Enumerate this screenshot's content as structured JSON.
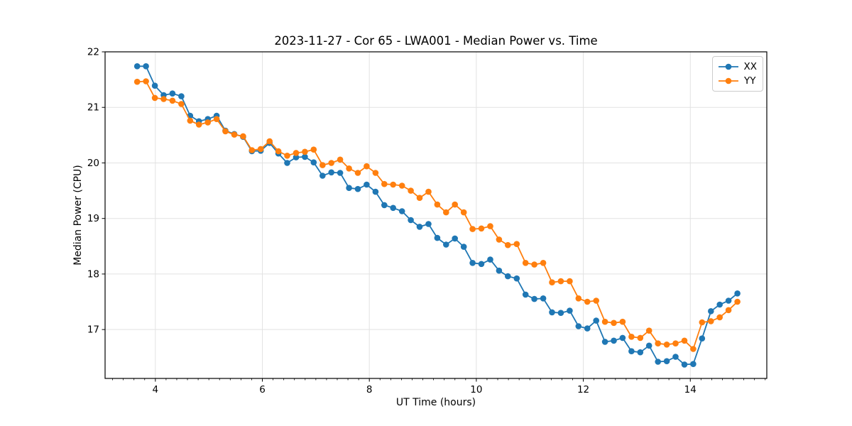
{
  "figure": {
    "background": "#ffffff",
    "text_color": "#000000",
    "spine_color": "#000000"
  },
  "legend": {
    "position": "upper right",
    "entries": [
      {
        "label": "XX",
        "color": "#1f77b4"
      },
      {
        "label": "YY",
        "color": "#ff7f0e"
      }
    ]
  },
  "chart_data": {
    "type": "line",
    "title": "2023-11-27 - Cor 65 - LWA001 - Median Power vs. Time",
    "xlabel": "UT Time (hours)",
    "ylabel": "Median Power (CPU)",
    "xlim": [
      3.06,
      15.43
    ],
    "ylim": [
      16.12,
      22.0
    ],
    "xticks": [
      4,
      6,
      8,
      10,
      12,
      14
    ],
    "yticks": [
      17,
      18,
      19,
      20,
      21,
      22
    ],
    "x_minor_tick_step": 0.2,
    "grid": true,
    "grid_color": "#e2e2e2",
    "marker": "circle",
    "legend_position": "upper right",
    "x": [
      3.66,
      3.825,
      3.99,
      4.155,
      4.32,
      4.485,
      4.65,
      4.815,
      4.98,
      5.145,
      5.31,
      5.475,
      5.64,
      5.805,
      5.97,
      6.135,
      6.3,
      6.465,
      6.63,
      6.795,
      6.96,
      7.125,
      7.29,
      7.455,
      7.62,
      7.785,
      7.95,
      8.115,
      8.28,
      8.445,
      8.61,
      8.775,
      8.94,
      9.105,
      9.27,
      9.435,
      9.6,
      9.765,
      9.93,
      10.095,
      10.26,
      10.425,
      10.59,
      10.755,
      10.92,
      11.085,
      11.25,
      11.415,
      11.58,
      11.745,
      11.91,
      12.075,
      12.24,
      12.405,
      12.57,
      12.735,
      12.9,
      13.065,
      13.23,
      13.395,
      13.56,
      13.725,
      13.89,
      14.055,
      14.22,
      14.385,
      14.55,
      14.715,
      14.88
    ],
    "series": [
      {
        "name": "XX",
        "color": "#1f77b4",
        "values": [
          21.74,
          21.74,
          21.39,
          21.22,
          21.25,
          21.2,
          20.85,
          20.75,
          20.79,
          20.85,
          20.58,
          20.52,
          20.47,
          20.21,
          20.22,
          20.36,
          20.17,
          20.0,
          20.1,
          20.11,
          20.01,
          19.77,
          19.83,
          19.82,
          19.55,
          19.53,
          19.61,
          19.48,
          19.24,
          19.19,
          19.13,
          18.97,
          18.85,
          18.9,
          18.65,
          18.53,
          18.64,
          18.49,
          18.2,
          18.18,
          18.26,
          18.06,
          17.96,
          17.92,
          17.63,
          17.55,
          17.56,
          17.31,
          17.3,
          17.34,
          17.06,
          17.02,
          17.16,
          16.78,
          16.8,
          16.85,
          16.61,
          16.59,
          16.71,
          16.42,
          16.43,
          16.51,
          16.37,
          16.38,
          16.84,
          17.33,
          17.45,
          17.52,
          17.65
        ]
      },
      {
        "name": "YY",
        "color": "#ff7f0e",
        "values": [
          21.46,
          21.47,
          21.17,
          21.15,
          21.12,
          21.06,
          20.76,
          20.69,
          20.73,
          20.79,
          20.57,
          20.51,
          20.48,
          20.23,
          20.25,
          20.39,
          20.21,
          20.13,
          20.18,
          20.2,
          20.24,
          19.96,
          20.0,
          20.06,
          19.9,
          19.82,
          19.94,
          19.82,
          19.62,
          19.61,
          19.59,
          19.5,
          19.37,
          19.48,
          19.25,
          19.11,
          19.25,
          19.11,
          18.81,
          18.82,
          18.86,
          18.62,
          18.52,
          18.54,
          18.2,
          18.17,
          18.2,
          17.85,
          17.87,
          17.87,
          17.56,
          17.5,
          17.52,
          17.14,
          17.12,
          17.14,
          16.87,
          16.85,
          16.98,
          16.75,
          16.73,
          16.75,
          16.8,
          16.65,
          17.13,
          17.15,
          17.22,
          17.35,
          17.5
        ]
      }
    ]
  }
}
